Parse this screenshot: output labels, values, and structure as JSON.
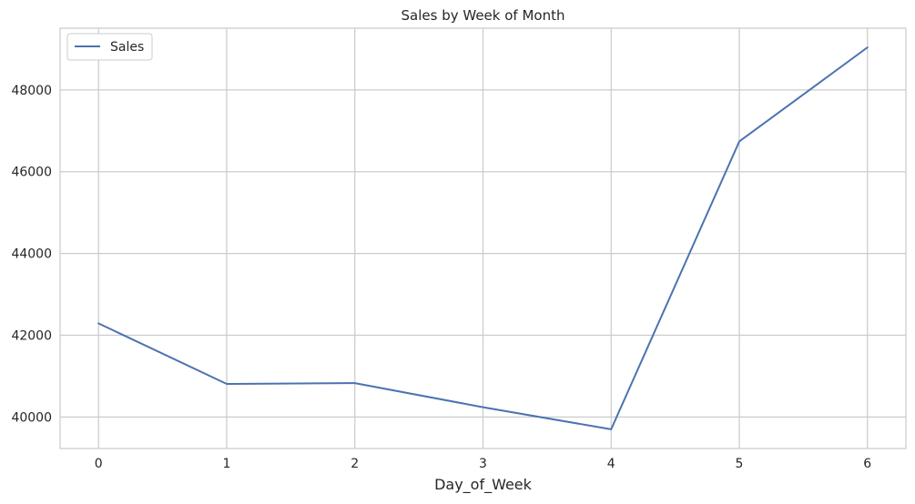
{
  "chart_data": {
    "type": "line",
    "title": "Sales by Week of Month",
    "xlabel": "Day_of_Week",
    "ylabel": "",
    "x": [
      0,
      1,
      2,
      3,
      4,
      5,
      6
    ],
    "series": [
      {
        "name": "Sales",
        "values": [
          42290,
          40810,
          40830,
          40240,
          39700,
          46740,
          49040
        ]
      }
    ],
    "xlim": [
      -0.3,
      6.3
    ],
    "ylim": [
      39230,
      49510
    ],
    "x_ticks": [
      0,
      1,
      2,
      3,
      4,
      5,
      6
    ],
    "y_ticks": [
      40000,
      42000,
      44000,
      46000,
      48000
    ],
    "grid": true,
    "legend": "top-left",
    "colors": {
      "line": "#4c72b0",
      "grid": "#cccccc",
      "spine": "#cccccc",
      "text": "#262626"
    }
  }
}
